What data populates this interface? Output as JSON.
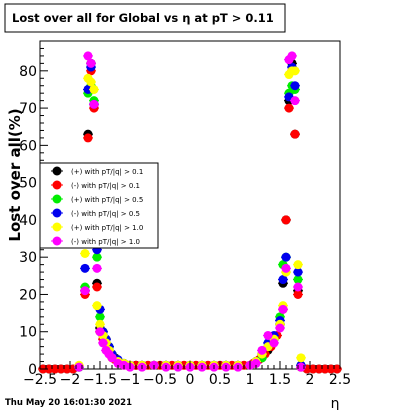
{
  "title": "Lost over all for Global vs    η at pT > 0.11",
  "footer_timestamp": "Thu May 20 16:01:30 2021",
  "chart_data": {
    "type": "scatter",
    "xlabel": "η",
    "ylabel": "Lost over all(%)",
    "xlim": [
      -2.5,
      2.5
    ],
    "ylim": [
      0,
      88
    ],
    "xticks": [
      -2.5,
      -2,
      -1.5,
      -1,
      -0.5,
      0,
      0.5,
      1,
      1.5,
      2,
      2.5
    ],
    "xtick_labels": [
      "−2.5",
      "−2",
      "−1.5",
      "−1",
      "−0.5",
      "0",
      "0.5",
      "1",
      "1.5",
      "2",
      "2.5"
    ],
    "yticks": [
      0,
      10,
      20,
      30,
      40,
      50,
      60,
      70,
      80
    ],
    "ytick_labels": [
      "0",
      "10",
      "20",
      "30",
      "40",
      "50",
      "60",
      "70",
      "80"
    ],
    "grid": false,
    "legend_position": "middle-left",
    "series": [
      {
        "name": "(+) with pT/|q| > 0.1",
        "color": "#000000",
        "points": [
          [
            -2.45,
            0
          ],
          [
            -2.35,
            0
          ],
          [
            -2.25,
            0
          ],
          [
            -2.15,
            0
          ],
          [
            -2.05,
            0
          ],
          [
            -1.95,
            0
          ],
          [
            -1.85,
            0.5
          ],
          [
            -1.75,
            21
          ],
          [
            -1.7,
            63
          ],
          [
            -1.65,
            82
          ],
          [
            -1.6,
            71
          ],
          [
            -1.55,
            23
          ],
          [
            -1.5,
            11
          ],
          [
            -1.45,
            9
          ],
          [
            -1.4,
            8
          ],
          [
            -1.35,
            6
          ],
          [
            -1.3,
            4
          ],
          [
            -1.25,
            3
          ],
          [
            -1.2,
            2
          ],
          [
            -1.1,
            1.5
          ],
          [
            -1.0,
            1
          ],
          [
            -0.9,
            1
          ],
          [
            -0.8,
            1
          ],
          [
            -0.6,
            1
          ],
          [
            -0.4,
            1
          ],
          [
            -0.2,
            1
          ],
          [
            0,
            1
          ],
          [
            0.2,
            1
          ],
          [
            0.4,
            1
          ],
          [
            0.6,
            1
          ],
          [
            0.8,
            1
          ],
          [
            1.0,
            1
          ],
          [
            1.1,
            2
          ],
          [
            1.2,
            3
          ],
          [
            1.3,
            5
          ],
          [
            1.4,
            8
          ],
          [
            1.5,
            12
          ],
          [
            1.55,
            23
          ],
          [
            1.6,
            40
          ],
          [
            1.65,
            72
          ],
          [
            1.7,
            82
          ],
          [
            1.75,
            63
          ],
          [
            1.8,
            21
          ],
          [
            1.85,
            0.5
          ],
          [
            1.95,
            0
          ],
          [
            2.05,
            0
          ],
          [
            2.15,
            0
          ],
          [
            2.25,
            0
          ],
          [
            2.35,
            0
          ],
          [
            2.45,
            0
          ]
        ]
      },
      {
        "name": "(-) with pT/|q| > 0.1",
        "color": "#ff0000",
        "points": [
          [
            -2.45,
            0
          ],
          [
            -2.35,
            0
          ],
          [
            -2.25,
            0
          ],
          [
            -2.15,
            0
          ],
          [
            -2.05,
            0
          ],
          [
            -1.95,
            0
          ],
          [
            -1.85,
            0.5
          ],
          [
            -1.75,
            20
          ],
          [
            -1.7,
            62
          ],
          [
            -1.65,
            80
          ],
          [
            -1.6,
            70
          ],
          [
            -1.55,
            22
          ],
          [
            -1.5,
            10
          ],
          [
            -1.45,
            8
          ],
          [
            -1.4,
            7
          ],
          [
            -1.35,
            5
          ],
          [
            -1.3,
            3
          ],
          [
            -1.25,
            2.5
          ],
          [
            -1.2,
            2
          ],
          [
            -1.1,
            1
          ],
          [
            -1.0,
            1
          ],
          [
            -0.9,
            1
          ],
          [
            -0.7,
            1
          ],
          [
            -0.5,
            1
          ],
          [
            -0.3,
            1
          ],
          [
            -0.1,
            1
          ],
          [
            0.1,
            1
          ],
          [
            0.3,
            1
          ],
          [
            0.5,
            1
          ],
          [
            0.7,
            1
          ],
          [
            0.9,
            1
          ],
          [
            1.05,
            1.5
          ],
          [
            1.15,
            2.5
          ],
          [
            1.25,
            4
          ],
          [
            1.35,
            6
          ],
          [
            1.45,
            9
          ],
          [
            1.55,
            16
          ],
          [
            1.6,
            40
          ],
          [
            1.65,
            70
          ],
          [
            1.7,
            80
          ],
          [
            1.75,
            63
          ],
          [
            1.8,
            20
          ],
          [
            1.85,
            0.5
          ],
          [
            1.95,
            0
          ],
          [
            2.05,
            0
          ],
          [
            2.15,
            0
          ],
          [
            2.25,
            0
          ],
          [
            2.35,
            0
          ],
          [
            2.45,
            0
          ]
        ]
      },
      {
        "name": "(+) with pT/|q| > 0.5",
        "color": "#00ee00",
        "points": [
          [
            -1.85,
            0.5
          ],
          [
            -1.75,
            22
          ],
          [
            -1.7,
            74
          ],
          [
            -1.65,
            76
          ],
          [
            -1.6,
            72
          ],
          [
            -1.55,
            30
          ],
          [
            -1.5,
            14
          ],
          [
            -1.45,
            10
          ],
          [
            -1.4,
            7
          ],
          [
            -1.35,
            6
          ],
          [
            -1.3,
            4
          ],
          [
            -1.2,
            2
          ],
          [
            -1.1,
            1.5
          ],
          [
            -1.0,
            1
          ],
          [
            -0.8,
            1
          ],
          [
            -0.6,
            1
          ],
          [
            -0.4,
            1
          ],
          [
            -0.2,
            1
          ],
          [
            0,
            1
          ],
          [
            0.2,
            1
          ],
          [
            0.4,
            1
          ],
          [
            0.6,
            1
          ],
          [
            0.8,
            1
          ],
          [
            1.0,
            1
          ],
          [
            1.1,
            2
          ],
          [
            1.2,
            3
          ],
          [
            1.3,
            6
          ],
          [
            1.4,
            8
          ],
          [
            1.5,
            14
          ],
          [
            1.55,
            28
          ],
          [
            1.6,
            30
          ],
          [
            1.65,
            74
          ],
          [
            1.7,
            76
          ],
          [
            1.75,
            75
          ],
          [
            1.8,
            24
          ],
          [
            1.85,
            1
          ]
        ]
      },
      {
        "name": "(-) with pT/|q| > 0.5",
        "color": "#0000ee",
        "points": [
          [
            -1.85,
            0.5
          ],
          [
            -1.75,
            27
          ],
          [
            -1.7,
            75
          ],
          [
            -1.65,
            81
          ],
          [
            -1.6,
            71
          ],
          [
            -1.55,
            32
          ],
          [
            -1.5,
            16
          ],
          [
            -1.45,
            10
          ],
          [
            -1.4,
            8
          ],
          [
            -1.35,
            6
          ],
          [
            -1.3,
            4
          ],
          [
            -1.2,
            2.5
          ],
          [
            -1.1,
            1.5
          ],
          [
            -1.0,
            1
          ],
          [
            -0.8,
            1
          ],
          [
            -0.6,
            1
          ],
          [
            -0.4,
            1
          ],
          [
            -0.2,
            1
          ],
          [
            0,
            1
          ],
          [
            0.2,
            1
          ],
          [
            0.4,
            1
          ],
          [
            0.6,
            1
          ],
          [
            0.8,
            1
          ],
          [
            1.0,
            1
          ],
          [
            1.1,
            2
          ],
          [
            1.2,
            4
          ],
          [
            1.3,
            7
          ],
          [
            1.4,
            9
          ],
          [
            1.5,
            13
          ],
          [
            1.55,
            24
          ],
          [
            1.6,
            30
          ],
          [
            1.65,
            73
          ],
          [
            1.7,
            81
          ],
          [
            1.75,
            76
          ],
          [
            1.8,
            26
          ],
          [
            1.85,
            1
          ]
        ]
      },
      {
        "name": "(+) with pT/|q| > 1.0",
        "color": "#ffff00",
        "points": [
          [
            -1.85,
            1
          ],
          [
            -1.75,
            31
          ],
          [
            -1.7,
            78
          ],
          [
            -1.65,
            77
          ],
          [
            -1.6,
            75
          ],
          [
            -1.55,
            17
          ],
          [
            -1.5,
            12
          ],
          [
            -1.45,
            9
          ],
          [
            -1.4,
            7
          ],
          [
            -1.35,
            5
          ],
          [
            -1.3,
            3
          ],
          [
            -1.2,
            2
          ],
          [
            -1.1,
            1.5
          ],
          [
            -1.0,
            1
          ],
          [
            -0.8,
            1
          ],
          [
            -0.6,
            1
          ],
          [
            -0.4,
            1
          ],
          [
            -0.2,
            1
          ],
          [
            0,
            1
          ],
          [
            0.2,
            1
          ],
          [
            0.4,
            1
          ],
          [
            0.6,
            1
          ],
          [
            0.8,
            1
          ],
          [
            1.0,
            1
          ],
          [
            1.1,
            2
          ],
          [
            1.2,
            4
          ],
          [
            1.3,
            6
          ],
          [
            1.4,
            8
          ],
          [
            1.5,
            12
          ],
          [
            1.55,
            17
          ],
          [
            1.6,
            26
          ],
          [
            1.65,
            79
          ],
          [
            1.7,
            80
          ],
          [
            1.75,
            80
          ],
          [
            1.8,
            28
          ],
          [
            1.85,
            3
          ]
        ]
      },
      {
        "name": "(-) with pT/|q| > 1.0",
        "color": "#ff00ff",
        "points": [
          [
            -1.85,
            0.5
          ],
          [
            -1.75,
            21
          ],
          [
            -1.7,
            84
          ],
          [
            -1.65,
            82
          ],
          [
            -1.6,
            71
          ],
          [
            -1.55,
            27
          ],
          [
            -1.5,
            10
          ],
          [
            -1.45,
            7
          ],
          [
            -1.4,
            5
          ],
          [
            -1.35,
            4
          ],
          [
            -1.3,
            3
          ],
          [
            -1.2,
            1.5
          ],
          [
            -1.1,
            1
          ],
          [
            -1.0,
            0.5
          ],
          [
            -0.8,
            0.5
          ],
          [
            -0.6,
            1
          ],
          [
            -0.4,
            0.5
          ],
          [
            -0.2,
            0.5
          ],
          [
            0,
            0.5
          ],
          [
            0.2,
            0.5
          ],
          [
            0.4,
            0.5
          ],
          [
            0.6,
            0.5
          ],
          [
            0.8,
            0.5
          ],
          [
            1.0,
            1
          ],
          [
            1.1,
            1.5
          ],
          [
            1.2,
            5
          ],
          [
            1.3,
            9
          ],
          [
            1.4,
            7
          ],
          [
            1.5,
            11
          ],
          [
            1.55,
            16
          ],
          [
            1.6,
            27
          ],
          [
            1.65,
            83
          ],
          [
            1.7,
            84
          ],
          [
            1.75,
            72
          ],
          [
            1.8,
            22
          ],
          [
            1.85,
            0.5
          ]
        ]
      }
    ]
  }
}
